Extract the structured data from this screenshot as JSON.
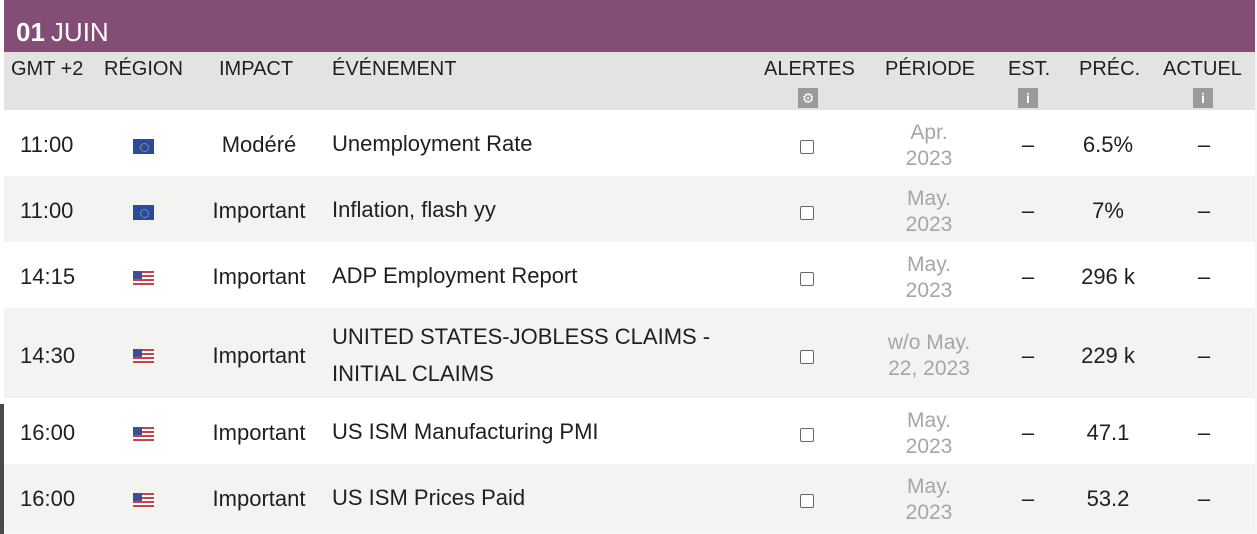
{
  "date": {
    "day": "01",
    "month": "JUIN"
  },
  "columns": {
    "time": "GMT +2",
    "region": "RÉGION",
    "impact": "IMPACT",
    "event": "ÉVÉNEMENT",
    "alerts": "ALERTES",
    "period": "PÉRIODE",
    "estimate": "EST.",
    "previous": "PRÉC.",
    "actual": "ACTUEL"
  },
  "header_icons": {
    "alerts": "gear-icon",
    "estimate": "info-icon",
    "actual": "info-icon"
  },
  "rows": [
    {
      "time": "11:00",
      "region_flag": "eu-flag-icon",
      "impact": "Modéré",
      "event_line1": "Unemployment Rate",
      "event_line2": "",
      "period_line1": "Apr.",
      "period_line2": "2023",
      "estimate": "–",
      "previous": "6.5%",
      "actual": "–"
    },
    {
      "time": "11:00",
      "region_flag": "eu-flag-icon",
      "impact": "Important",
      "event_line1": "Inflation, flash yy",
      "event_line2": "",
      "period_line1": "May.",
      "period_line2": "2023",
      "estimate": "–",
      "previous": "7%",
      "actual": "–"
    },
    {
      "time": "14:15",
      "region_flag": "us-flag-icon",
      "impact": "Important",
      "event_line1": "ADP Employment Report",
      "event_line2": "",
      "period_line1": "May.",
      "period_line2": "2023",
      "estimate": "–",
      "previous": "296 k",
      "actual": "–"
    },
    {
      "time": "14:30",
      "region_flag": "us-flag-icon",
      "impact": "Important",
      "event_line1": "UNITED STATES-JOBLESS CLAIMS -",
      "event_line2": "INITIAL CLAIMS",
      "period_line1": "w/o May.",
      "period_line2": "22, 2023",
      "estimate": "–",
      "previous": "229 k",
      "actual": "–"
    },
    {
      "time": "16:00",
      "region_flag": "us-flag-icon",
      "impact": "Important",
      "event_line1": "US ISM Manufacturing PMI",
      "event_line2": "",
      "period_line1": "May.",
      "period_line2": "2023",
      "estimate": "–",
      "previous": "47.1",
      "actual": "–"
    },
    {
      "time": "16:00",
      "region_flag": "us-flag-icon",
      "impact": "Important",
      "event_line1": "US ISM Prices Paid",
      "event_line2": "",
      "period_line1": "May.",
      "period_line2": "2023",
      "estimate": "–",
      "previous": "53.2",
      "actual": "–"
    }
  ],
  "colors": {
    "date_bar": "#844d76",
    "header_bg": "#e3e4e1",
    "period_text": "#a6a6a6"
  }
}
